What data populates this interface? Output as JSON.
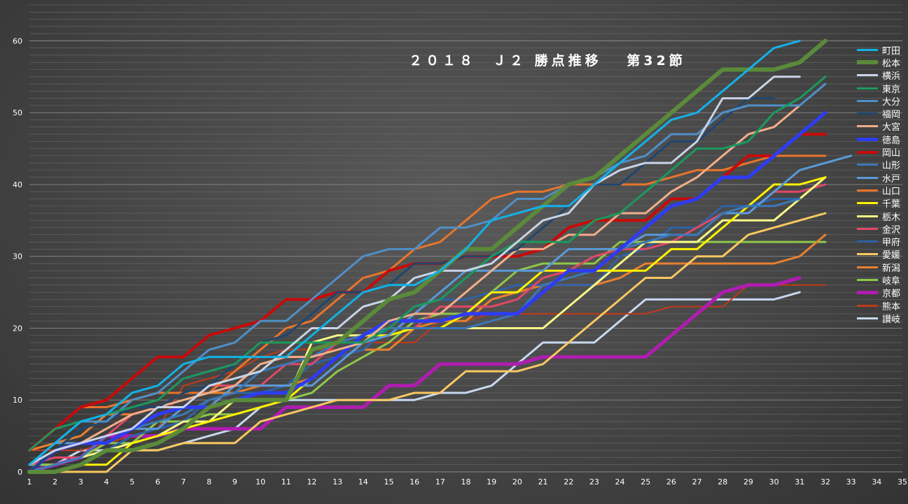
{
  "chart_data": {
    "type": "line",
    "title": "２０１８　Ｊ２ 勝点推移　 第32節",
    "xlabel": "",
    "ylabel": "",
    "xlim": [
      1,
      35
    ],
    "ylim": [
      0,
      65
    ],
    "x_ticks": [
      1,
      2,
      3,
      4,
      5,
      6,
      7,
      8,
      9,
      10,
      11,
      12,
      13,
      14,
      15,
      16,
      17,
      18,
      19,
      20,
      21,
      22,
      23,
      24,
      25,
      26,
      27,
      28,
      29,
      30,
      31,
      32,
      33,
      34,
      35
    ],
    "y_ticks": [
      0,
      10,
      20,
      30,
      40,
      50,
      60
    ],
    "grid": true,
    "legend_position": "right",
    "series": [
      {
        "name": "町田",
        "color": "#12b2e8",
        "width": 3,
        "values": [
          1,
          4,
          7,
          8,
          11,
          12,
          15,
          16,
          16,
          16,
          16,
          19,
          22,
          25,
          26,
          26,
          28,
          31,
          35,
          36,
          37,
          37,
          40,
          43,
          46,
          49,
          50,
          53,
          56,
          59,
          60
        ]
      },
      {
        "name": "松本",
        "color": "#5a8a3a",
        "width": 6,
        "values": [
          0,
          0,
          1,
          3,
          3,
          4,
          6,
          9,
          10,
          10,
          10,
          17,
          18,
          21,
          24,
          25,
          28,
          31,
          31,
          34,
          37,
          40,
          41,
          44,
          47,
          50,
          53,
          56,
          56,
          56,
          57,
          60
        ]
      },
      {
        "name": "横浜",
        "color": "#c8d4e6",
        "width": 3,
        "values": [
          1,
          3,
          4,
          5,
          6,
          9,
          9,
          12,
          13,
          14,
          17,
          20,
          20,
          23,
          24,
          27,
          28,
          28,
          29,
          32,
          35,
          36,
          40,
          42,
          43,
          43,
          46,
          52,
          52,
          55,
          55
        ]
      },
      {
        "name": "東京",
        "color": "#1a9a5e",
        "width": 3,
        "values": [
          3,
          6,
          7,
          8,
          9,
          10,
          13,
          14,
          15,
          18,
          18,
          18,
          18,
          18,
          20,
          23,
          24,
          27,
          30,
          32,
          32,
          32,
          35,
          36,
          39,
          42,
          45,
          45,
          46,
          50,
          52,
          55
        ]
      },
      {
        "name": "大分",
        "color": "#4f8fc8",
        "width": 3,
        "values": [
          1,
          4,
          7,
          7,
          10,
          11,
          14,
          17,
          18,
          21,
          21,
          24,
          27,
          30,
          31,
          31,
          34,
          34,
          35,
          38,
          38,
          40,
          41,
          43,
          44,
          47,
          47,
          50,
          51,
          51,
          51,
          54
        ]
      },
      {
        "name": "福岡",
        "color": "#20466e",
        "width": 3,
        "values": [
          0,
          3,
          6,
          7,
          9,
          9,
          11,
          12,
          15,
          18,
          19,
          22,
          25,
          25,
          26,
          29,
          29,
          30,
          30,
          31,
          34,
          37,
          40,
          40,
          43,
          46,
          46,
          49,
          52,
          52
        ]
      },
      {
        "name": "大宮",
        "color": "#f2ae8a",
        "width": 3,
        "values": [
          1,
          3,
          4,
          6,
          8,
          9,
          10,
          11,
          12,
          15,
          16,
          16,
          17,
          18,
          21,
          22,
          22,
          25,
          28,
          31,
          31,
          33,
          33,
          36,
          36,
          39,
          41,
          44,
          47,
          48,
          51
        ]
      },
      {
        "name": "徳島",
        "color": "#2e3cf2",
        "width": 5,
        "values": [
          0,
          3,
          4,
          4,
          6,
          8,
          9,
          9,
          10,
          11,
          11,
          13,
          16,
          19,
          21,
          21,
          21,
          22,
          22,
          22,
          25,
          28,
          28,
          31,
          34,
          37,
          38,
          41,
          41,
          44,
          47,
          50
        ]
      },
      {
        "name": "岡山",
        "color": "#c80a0a",
        "width": 4,
        "values": [
          3,
          6,
          9,
          10,
          13,
          16,
          16,
          19,
          20,
          21,
          24,
          24,
          25,
          25,
          28,
          29,
          29,
          30,
          30,
          30,
          31,
          34,
          35,
          35,
          35,
          38,
          38,
          41,
          44,
          44,
          47,
          47
        ]
      },
      {
        "name": "山形",
        "color": "#3a78b8",
        "width": 3,
        "values": [
          0,
          1,
          2,
          5,
          6,
          7,
          8,
          10,
          11,
          14,
          15,
          16,
          18,
          19,
          20,
          20,
          20,
          20,
          21,
          22,
          26,
          27,
          28,
          31,
          32,
          33,
          33,
          36,
          37,
          37,
          38
        ]
      },
      {
        "name": "水戸",
        "color": "#5a9ad8",
        "width": 3,
        "values": [
          1,
          4,
          4,
          5,
          6,
          6,
          9,
          9,
          12,
          12,
          12,
          12,
          15,
          18,
          19,
          22,
          25,
          28,
          28,
          28,
          28,
          31,
          31,
          31,
          33,
          33,
          33,
          36,
          36,
          39,
          42,
          43,
          44
        ]
      },
      {
        "name": "山口",
        "color": "#e8742a",
        "width": 3,
        "values": [
          3,
          6,
          9,
          9,
          10,
          11,
          11,
          11,
          14,
          17,
          20,
          21,
          24,
          27,
          28,
          31,
          32,
          35,
          38,
          39,
          39,
          40,
          40,
          40,
          40,
          41,
          42,
          42,
          43,
          44,
          44,
          44
        ]
      },
      {
        "name": "千葉",
        "color": "#fff200",
        "width": 3,
        "values": [
          0,
          0,
          1,
          1,
          4,
          5,
          6,
          7,
          8,
          9,
          10,
          13,
          16,
          19,
          19,
          20,
          20,
          22,
          25,
          25,
          28,
          28,
          28,
          28,
          28,
          31,
          31,
          34,
          37,
          40,
          40,
          41
        ]
      },
      {
        "name": "栃木",
        "color": "#f8f888",
        "width": 3,
        "values": [
          0,
          1,
          2,
          3,
          4,
          5,
          7,
          7,
          10,
          10,
          10,
          18,
          19,
          19,
          20,
          20,
          20,
          20,
          20,
          20,
          20,
          23,
          26,
          29,
          32,
          32,
          32,
          35,
          35,
          35,
          38,
          41
        ]
      },
      {
        "name": "金沢",
        "color": "#e04868",
        "width": 3,
        "values": [
          1,
          2,
          2,
          5,
          8,
          9,
          9,
          12,
          12,
          12,
          15,
          15,
          18,
          19,
          20,
          20,
          23,
          23,
          23,
          24,
          27,
          28,
          30,
          31,
          31,
          32,
          34,
          36,
          36,
          39,
          39,
          40
        ]
      },
      {
        "name": "甲府",
        "color": "#2e62a8",
        "width": 3,
        "values": [
          1,
          2,
          2,
          3,
          5,
          6,
          7,
          10,
          11,
          11,
          12,
          15,
          16,
          17,
          20,
          23,
          24,
          24,
          25,
          26,
          26,
          26,
          26,
          30,
          31,
          34,
          34,
          37,
          37,
          38,
          38
        ]
      },
      {
        "name": "愛媛",
        "color": "#f8c860",
        "width": 3,
        "values": [
          0,
          0,
          0,
          0,
          3,
          3,
          4,
          4,
          4,
          7,
          8,
          9,
          10,
          10,
          10,
          11,
          11,
          14,
          14,
          14,
          15,
          18,
          21,
          24,
          27,
          27,
          30,
          30,
          33,
          34,
          35,
          36
        ]
      },
      {
        "name": "新潟",
        "color": "#e88030",
        "width": 3,
        "values": [
          3,
          4,
          5,
          8,
          8,
          9,
          11,
          11,
          11,
          12,
          12,
          13,
          16,
          17,
          17,
          20,
          21,
          21,
          24,
          25,
          26,
          26,
          26,
          27,
          29,
          29,
          29,
          29,
          29,
          29,
          30,
          33
        ]
      },
      {
        "name": "岐阜",
        "color": "#8ec84a",
        "width": 3,
        "values": [
          1,
          1,
          2,
          4,
          4,
          7,
          7,
          8,
          8,
          9,
          10,
          11,
          14,
          16,
          18,
          21,
          22,
          22,
          25,
          28,
          29,
          29,
          29,
          32,
          32,
          32,
          32,
          32,
          32,
          32,
          32,
          32
        ]
      },
      {
        "name": "京都",
        "color": "#b01cb0",
        "width": 5,
        "values": [
          0,
          1,
          2,
          5,
          5,
          5,
          6,
          6,
          6,
          6,
          9,
          9,
          9,
          9,
          12,
          12,
          15,
          15,
          15,
          15,
          16,
          16,
          16,
          16,
          16,
          19,
          22,
          25,
          26,
          26,
          27
        ]
      },
      {
        "name": "熊本",
        "color": "#c03a1a",
        "width": 2,
        "values": [
          3,
          3,
          3,
          4,
          5,
          6,
          12,
          13,
          14,
          16,
          17,
          17,
          17,
          18,
          18,
          18,
          21,
          21,
          22,
          22,
          22,
          22,
          22,
          22,
          22,
          23,
          23,
          23,
          26,
          26,
          26,
          26
        ]
      },
      {
        "name": "讃岐",
        "color": "#c8d8f0",
        "width": 3,
        "values": [
          1,
          1,
          3,
          3,
          3,
          3,
          4,
          5,
          6,
          9,
          10,
          10,
          10,
          10,
          10,
          10,
          11,
          11,
          12,
          15,
          18,
          18,
          18,
          21,
          24,
          24,
          24,
          24,
          24,
          24,
          25
        ]
      }
    ]
  }
}
